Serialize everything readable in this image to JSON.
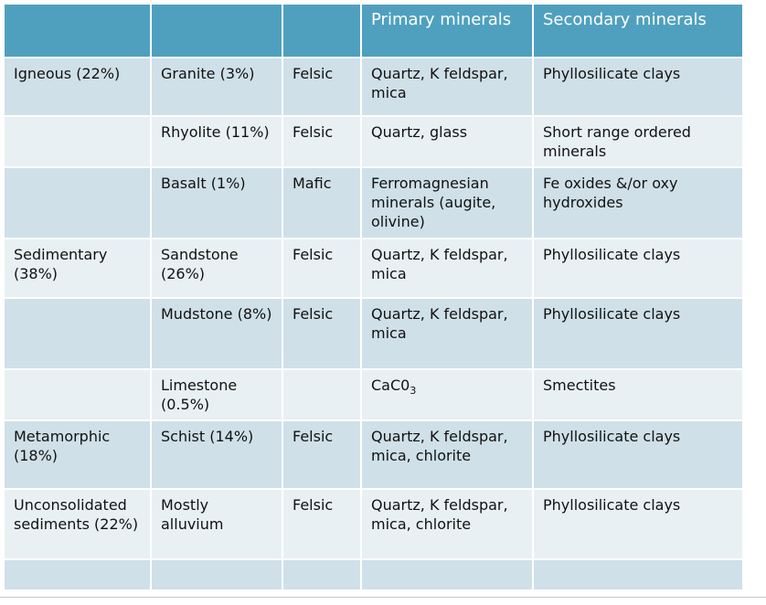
{
  "headers": [
    "",
    "",
    "",
    "Primary minerals",
    "Secondary minerals"
  ],
  "rows": [
    {
      "category": "Igneous (22%)",
      "rock": "Granite (3%)",
      "rock_bold": true,
      "type": "Felsic",
      "primary": "Quartz, K feldspar, mica",
      "secondary": "Phyllosilicate clays"
    },
    {
      "category": "",
      "rock": "Rhyolite (11%)",
      "rock_bold": true,
      "type": "Felsic",
      "primary": "Quartz, glass",
      "secondary": "Short range ordered minerals"
    },
    {
      "category": "",
      "rock": "Basalt (1%)",
      "rock_bold": false,
      "type": "Mafic",
      "primary": "Ferromagnesian minerals (augite, olivine)",
      "secondary": "Fe oxides &/or oxy hydroxides"
    },
    {
      "category": "Sedimentary (38%)",
      "rock": "Sandstone (26%)",
      "rock_bold": true,
      "type": "Felsic",
      "primary": "Quartz, K feldspar, mica",
      "secondary": "Phyllosilicate clays"
    },
    {
      "category": "",
      "rock": "Mudstone (8%)",
      "rock_bold": true,
      "type": "Felsic",
      "primary": "Quartz, K feldspar, mica",
      "secondary": "Phyllosilicate clays"
    },
    {
      "category": "",
      "rock": "Limestone (0.5%)",
      "rock_bold": false,
      "type": "",
      "primary": "CaC0",
      "primary_sub": "3",
      "secondary": "Smectites"
    },
    {
      "category": "Metamorphic (18%)",
      "rock": "Schist (14%)",
      "rock_bold": true,
      "type": "Felsic",
      "primary": "Quartz, K feldspar, mica, chlorite",
      "secondary": "Phyllosilicate clays"
    },
    {
      "category": "Unconsolidated sediments (22%)",
      "rock": "Mostly alluvium",
      "rock_bold": false,
      "type": "Felsic",
      "primary": "Quartz, K feldspar, mica, chlorite",
      "secondary": "Phyllosilicate clays"
    },
    {
      "category": "",
      "rock": "",
      "rock_bold": false,
      "type": "",
      "primary": "",
      "secondary": ""
    }
  ],
  "colors": {
    "header_bg": "#4fa0bf",
    "row_dark": "#cfe0e8",
    "row_light": "#e8f0f4"
  }
}
